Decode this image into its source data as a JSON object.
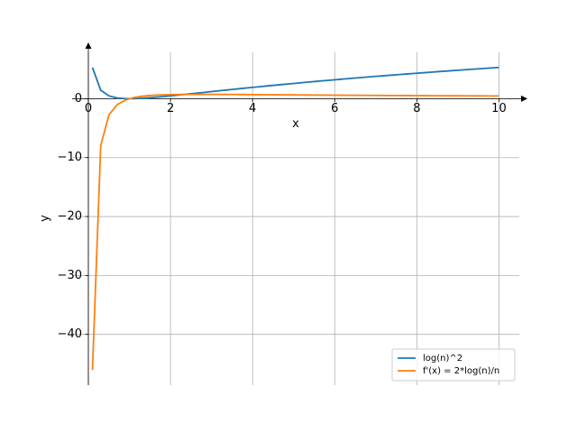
{
  "chart_data": {
    "type": "line",
    "x_label": "x",
    "y_label": "y",
    "x": [
      0.1,
      0.302,
      0.504,
      0.706,
      0.908,
      1.11,
      1.312,
      1.514,
      1.716,
      1.918,
      2.12,
      2.322,
      2.524,
      2.727,
      2.929,
      3.131,
      3.333,
      3.535,
      3.737,
      3.939,
      4.141,
      4.343,
      4.545,
      4.747,
      4.949,
      5.151,
      5.353,
      5.555,
      5.757,
      5.959,
      6.161,
      6.363,
      6.565,
      6.767,
      6.969,
      7.171,
      7.373,
      7.576,
      7.778,
      7.98,
      8.182,
      8.384,
      8.586,
      8.788,
      8.99,
      9.192,
      9.394,
      9.596,
      9.798,
      10
    ],
    "series": [
      {
        "name": "log(n)^2",
        "color": "#1f77b4",
        "values": [
          5.302,
          1.434,
          0.469,
          0.121,
          0.009,
          0.011,
          0.074,
          0.172,
          0.292,
          0.425,
          0.565,
          0.71,
          0.858,
          1.006,
          1.155,
          1.302,
          1.449,
          1.594,
          1.738,
          1.879,
          2.019,
          2.157,
          2.292,
          2.426,
          2.557,
          2.687,
          2.815,
          2.94,
          3.064,
          3.186,
          3.306,
          3.424,
          3.541,
          3.656,
          3.769,
          3.881,
          3.992,
          4.1,
          4.208,
          4.314,
          4.418,
          4.521,
          4.623,
          4.724,
          4.823,
          4.921,
          5.018,
          5.114,
          5.208,
          5.302
        ]
      },
      {
        "name": "f'(x) = 2*log(n)/n",
        "color": "#ff7f0e",
        "values": [
          -46.05,
          -7.929,
          -2.718,
          -0.985,
          -0.212,
          0.188,
          0.414,
          0.548,
          0.63,
          0.679,
          0.709,
          0.726,
          0.734,
          0.736,
          0.734,
          0.729,
          0.722,
          0.714,
          0.706,
          0.696,
          0.686,
          0.676,
          0.666,
          0.656,
          0.646,
          0.637,
          0.627,
          0.617,
          0.608,
          0.599,
          0.59,
          0.582,
          0.573,
          0.565,
          0.557,
          0.549,
          0.542,
          0.535,
          0.528,
          0.521,
          0.514,
          0.507,
          0.501,
          0.495,
          0.489,
          0.483,
          0.477,
          0.471,
          0.466,
          0.461
        ]
      }
    ],
    "xlim": [
      -0.395,
      10.495
    ],
    "ylim": [
      -48.62,
      7.87
    ],
    "xticks": [
      0,
      2,
      4,
      6,
      8,
      10
    ],
    "yticks": [
      {
        "value": -40,
        "label": "−40"
      },
      {
        "value": -30,
        "label": "−30"
      },
      {
        "value": -20,
        "label": "−20"
      },
      {
        "value": -10,
        "label": "−10"
      },
      0
    ],
    "grid": true,
    "legend": "lower right"
  }
}
